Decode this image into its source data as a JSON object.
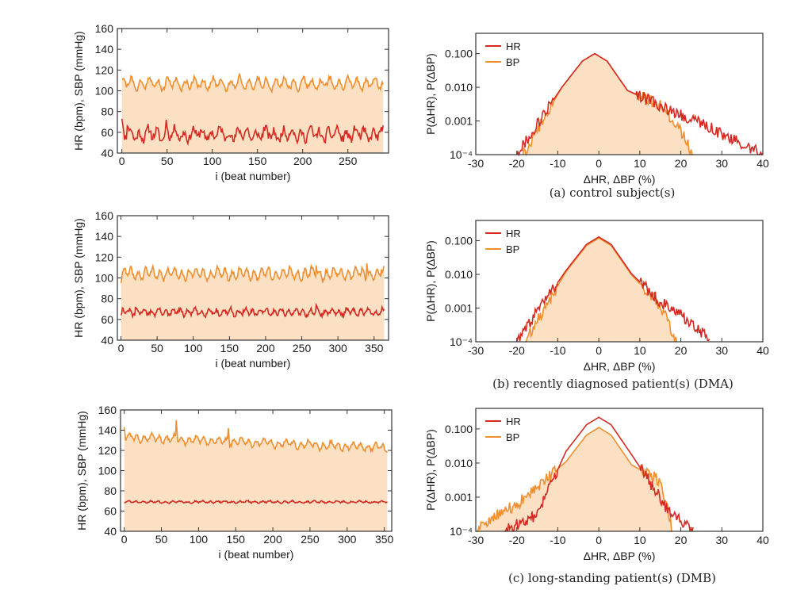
{
  "colors": {
    "hr": "#d42a22",
    "bp": "#ef8f2e",
    "fill": "#fbe0c4"
  },
  "chart_data": [
    {
      "id": "ts-a",
      "type": "line",
      "xlabel": "i (beat number)",
      "ylabel": "HR (bpm), SBP (mmHg)",
      "xlim": [
        -5,
        295
      ],
      "ylim": [
        40,
        160
      ],
      "xticks": [
        0,
        50,
        100,
        150,
        200,
        250
      ],
      "yticks": [
        40,
        60,
        80,
        100,
        120,
        140,
        160
      ],
      "n": 290,
      "fill_series": "BP",
      "series": [
        {
          "name": "HR",
          "mean": 58,
          "amp": 4.5,
          "noise": 4,
          "seed": 11,
          "spikes": [
            [
              0,
              73
            ],
            [
              49,
              72
            ],
            [
              6,
              66
            ]
          ]
        },
        {
          "name": "BP",
          "mean": 107,
          "amp": 4.5,
          "noise": 2.5,
          "seed": 21,
          "spikes": [
            [
              2,
              112
            ],
            [
              130,
              116
            ],
            [
              135,
              102
            ],
            [
              180,
              112
            ]
          ]
        }
      ]
    },
    {
      "id": "pd-a",
      "type": "line",
      "log_y": true,
      "xlabel": "ΔHR, ΔBP (%)",
      "ylabel": "P(ΔHR), P(ΔBP)",
      "xlim": [
        -30,
        40
      ],
      "ylim": [
        0.0001,
        0.4
      ],
      "xticks": [
        -30,
        -20,
        -10,
        0,
        10,
        20,
        30,
        40
      ],
      "yticks": [
        0.0001,
        0.001,
        0.01,
        0.1
      ],
      "ytick_labels": [
        "10⁻⁴",
        "0.001",
        "0.010",
        "0.100"
      ],
      "legend": [
        "HR",
        "BP"
      ],
      "legend_position": "top-left",
      "fill_series": "BP",
      "series": [
        {
          "name": "HR",
          "peak": 0.1,
          "mu": -1,
          "left": [
            -20,
            0.0001
          ],
          "right": [
            40,
            0.0001
          ],
          "tail": [
            [
              20,
              0.0015
            ],
            [
              25,
              0.0009
            ],
            [
              30,
              0.0004
            ],
            [
              35,
              0.0002
            ]
          ]
        },
        {
          "name": "BP",
          "peak": 0.1,
          "mu": -1,
          "left": [
            -18.5,
            0.0001
          ],
          "right": [
            23,
            0.0001
          ],
          "tail": [
            [
              15,
              0.003
            ],
            [
              20,
              0.0005
            ]
          ]
        }
      ],
      "caption": "(a) control subject(s)"
    },
    {
      "id": "ts-b",
      "type": "line",
      "xlabel": "i (beat number)",
      "ylabel": "HR (bpm), SBP (mmHg)",
      "xlim": [
        -5,
        370
      ],
      "ylim": [
        40,
        160
      ],
      "xticks": [
        0,
        50,
        100,
        150,
        200,
        250,
        300,
        350
      ],
      "yticks": [
        40,
        60,
        80,
        100,
        120,
        140,
        160
      ],
      "n": 365,
      "fill_series": "BP",
      "series": [
        {
          "name": "HR",
          "mean": 67,
          "amp": 2.5,
          "noise": 1.8,
          "seed": 31,
          "spikes": [
            [
              20,
              72
            ],
            [
              270,
              74
            ],
            [
              0,
              64
            ]
          ]
        },
        {
          "name": "BP",
          "mean": 104,
          "amp": 4.5,
          "noise": 2,
          "seed": 41,
          "spikes": [
            [
              0,
              95
            ],
            [
              270,
              112
            ],
            [
              340,
              114
            ],
            [
              360,
              108
            ]
          ]
        }
      ]
    },
    {
      "id": "pd-b",
      "type": "line",
      "log_y": true,
      "xlabel": "ΔHR, ΔBP (%)",
      "ylabel": "P(ΔHR), P(ΔBP)",
      "xlim": [
        -30,
        40
      ],
      "ylim": [
        0.0001,
        0.4
      ],
      "xticks": [
        -30,
        -20,
        -10,
        0,
        10,
        20,
        30,
        40
      ],
      "yticks": [
        0.0001,
        0.001,
        0.01,
        0.1
      ],
      "ytick_labels": [
        "10⁻⁴",
        "0.001",
        "0.010",
        "0.100"
      ],
      "legend": [
        "HR",
        "BP"
      ],
      "legend_position": "top-left",
      "fill_series": "BP",
      "series": [
        {
          "name": "HR",
          "peak": 0.13,
          "mu": 0,
          "left": [
            -20,
            0.0001
          ],
          "right": [
            27,
            0.0001
          ],
          "tail": [
            [
              15,
              0.0015
            ],
            [
              20,
              0.0006
            ],
            [
              25,
              0.0002
            ]
          ]
        },
        {
          "name": "BP",
          "peak": 0.12,
          "mu": 0,
          "left": [
            -18,
            0.0001
          ],
          "right": [
            19,
            0.0001
          ],
          "tail": [
            [
              15,
              0.0012
            ]
          ]
        }
      ],
      "caption": "(b) recently diagnosed patient(s) (DMA)"
    },
    {
      "id": "ts-c",
      "type": "line",
      "xlabel": "i (beat number)",
      "ylabel": "HR (bpm), SBP (mmHg)",
      "xlim": [
        -5,
        360
      ],
      "ylim": [
        40,
        160
      ],
      "xticks": [
        0,
        50,
        100,
        150,
        200,
        250,
        300,
        350
      ],
      "yticks": [
        40,
        60,
        80,
        100,
        120,
        140,
        160
      ],
      "n": 355,
      "fill_series": "BP",
      "series": [
        {
          "name": "HR",
          "mean": 69,
          "amp": 0.8,
          "noise": 0.6,
          "seed": 51,
          "spikes": []
        },
        {
          "name": "BP",
          "mean": 133,
          "amp": 3,
          "noise": 1.5,
          "seed": 61,
          "trend": -0.03,
          "spikes": [
            [
              0,
              143
            ],
            [
              70,
              150
            ],
            [
              140,
              142
            ],
            [
              355,
              124
            ]
          ]
        }
      ]
    },
    {
      "id": "pd-c",
      "type": "line",
      "log_y": true,
      "xlabel": "ΔHR, ΔBP (%)",
      "ylabel": "P(ΔHR), P(ΔBP)",
      "xlim": [
        -30,
        40
      ],
      "ylim": [
        0.0001,
        0.4
      ],
      "xticks": [
        -30,
        -20,
        -10,
        0,
        10,
        20,
        30,
        40
      ],
      "yticks": [
        0.0001,
        0.001,
        0.01,
        0.1
      ],
      "ytick_labels": [
        "10⁻⁴",
        "0.001",
        "0.010",
        "0.100"
      ],
      "legend": [
        "HR",
        "BP"
      ],
      "legend_position": "top-left",
      "fill_series": "BP",
      "series": [
        {
          "name": "HR",
          "peak": 0.22,
          "mu": 0,
          "left": [
            -23,
            0.0001
          ],
          "right": [
            23,
            0.0001
          ],
          "tail": [
            [
              -15,
              0.0003
            ],
            [
              17,
              0.0004
            ]
          ]
        },
        {
          "name": "BP",
          "peak": 0.11,
          "mu": 0,
          "left": [
            -30,
            0.0001
          ],
          "right": [
            18,
            0.0001
          ],
          "tail": [
            [
              -25,
              0.0003
            ],
            [
              -20,
              0.0006
            ],
            [
              15,
              0.003
            ]
          ]
        }
      ],
      "caption": "(c) long-standing patient(s) (DMB)"
    }
  ]
}
